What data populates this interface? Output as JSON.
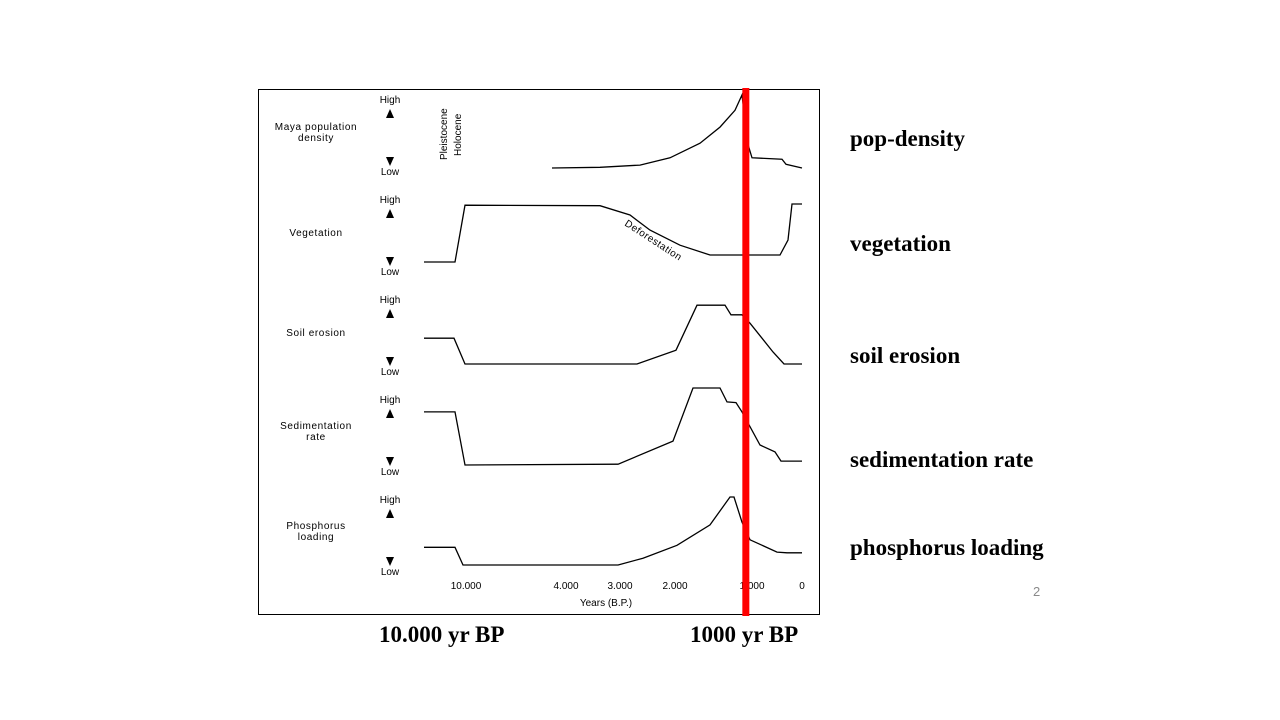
{
  "chart_data": {
    "type": "line",
    "xlabel": "Years (B.P.)",
    "x_ticks": [
      {
        "value": 10000,
        "label": "10.000"
      },
      {
        "value": 4000,
        "label": "4.000"
      },
      {
        "value": 3000,
        "label": "3.000"
      },
      {
        "value": 2000,
        "label": "2.000"
      },
      {
        "value": 1000,
        "label": "1.000"
      },
      {
        "value": 0,
        "label": "0"
      }
    ],
    "x_axis_note": "non-linear time axis, reversed (older to the left)",
    "y_scale": "relative level 0 = Low, 1 = High",
    "high_label": "High",
    "low_label": "Low",
    "annotations": {
      "pleistocene": "Pleistocene",
      "holocene": "Holocene",
      "deforestation": "Deforestation"
    },
    "marker": {
      "year": 1080,
      "color": "#ff0000"
    },
    "series": [
      {
        "name": "Maya population density",
        "right_label": "pop-density",
        "x": [
          4840,
          3370,
          2636,
          2091,
          1675,
          1415,
          1221,
          1130,
          1052,
          1000,
          400,
          320,
          0
        ],
        "y": [
          0,
          0.01,
          0.04,
          0.14,
          0.34,
          0.56,
          0.79,
          1,
          0.32,
          0.14,
          0.12,
          0.05,
          0
        ]
      },
      {
        "name": "Vegetation",
        "right_label": "vegetation",
        "x": [
          12500,
          10655,
          10060,
          3370,
          2818,
          2455,
          1935,
          1545,
          440,
          280,
          200,
          0
        ],
        "y": [
          0,
          0,
          0.98,
          0.97,
          0.81,
          0.55,
          0.29,
          0.12,
          0.12,
          0.38,
          1,
          1
        ]
      },
      {
        "name": "Soil erosion",
        "right_label": "soil erosion",
        "x": [
          12500,
          10714,
          10060,
          2690,
          1987,
          1714,
          1351,
          1273,
          1130,
          1026,
          580,
          360,
          0
        ],
        "y": [
          0.43,
          0.43,
          0,
          0,
          0.23,
          0.98,
          0.98,
          0.82,
          0.82,
          0.68,
          0.2,
          0,
          0
        ]
      },
      {
        "name": "Sedimentation rate",
        "right_label": "sedimentation rate",
        "x": [
          12500,
          10655,
          10060,
          3036,
          2036,
          1766,
          1415,
          1325,
          1208,
          1130,
          840,
          540,
          420,
          0
        ],
        "y": [
          0.69,
          0.69,
          0,
          0.01,
          0.31,
          1,
          1,
          0.82,
          0.81,
          0.69,
          0.26,
          0.17,
          0.05,
          0.05
        ]
      },
      {
        "name": "Phosphorus loading",
        "right_label": "phosphorus loading",
        "x": [
          12500,
          10655,
          10179,
          3036,
          2582,
          1974,
          1545,
          1286,
          1234,
          1130,
          1026,
          500,
          300,
          0
        ],
        "y": [
          0.26,
          0.26,
          0,
          0,
          0.1,
          0.29,
          0.59,
          1,
          1,
          0.63,
          0.37,
          0.19,
          0.18,
          0.18
        ]
      }
    ]
  },
  "slide": {
    "bottom_left_label": "10.000 yr BP",
    "bottom_right_label": "1000 yr BP",
    "page_number": "2"
  }
}
